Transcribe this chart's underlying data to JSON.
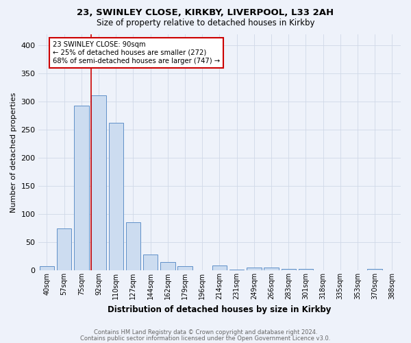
{
  "title1": "23, SWINLEY CLOSE, KIRKBY, LIVERPOOL, L33 2AH",
  "title2": "Size of property relative to detached houses in Kirkby",
  "xlabel": "Distribution of detached houses by size in Kirkby",
  "ylabel": "Number of detached properties",
  "footer1": "Contains HM Land Registry data © Crown copyright and database right 2024.",
  "footer2": "Contains public sector information licensed under the Open Government Licence v3.0.",
  "bin_labels": [
    "40sqm",
    "57sqm",
    "75sqm",
    "92sqm",
    "110sqm",
    "127sqm",
    "144sqm",
    "162sqm",
    "179sqm",
    "196sqm",
    "214sqm",
    "231sqm",
    "249sqm",
    "266sqm",
    "283sqm",
    "301sqm",
    "318sqm",
    "335sqm",
    "353sqm",
    "370sqm",
    "388sqm"
  ],
  "bar_values": [
    7,
    75,
    293,
    311,
    262,
    85,
    28,
    15,
    7,
    0,
    8,
    1,
    5,
    5,
    3,
    2,
    0,
    0,
    0,
    3,
    0
  ],
  "bar_color": "#ccdcf0",
  "bar_edgecolor": "#6090c8",
  "grid_color": "#d0d8e8",
  "bg_color": "#eef2fa",
  "vline_color": "#cc0000",
  "annotation_text": "23 SWINLEY CLOSE: 90sqm\n← 25% of detached houses are smaller (272)\n68% of semi-detached houses are larger (747) →",
  "annotation_box_color": "white",
  "annotation_box_edgecolor": "#cc0000",
  "ylim": [
    0,
    420
  ],
  "yticks": [
    0,
    50,
    100,
    150,
    200,
    250,
    300,
    350,
    400
  ],
  "vline_pos": 2.58
}
